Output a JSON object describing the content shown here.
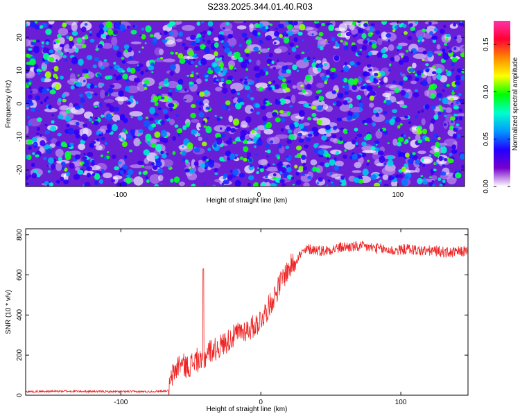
{
  "title": "S233.2025.344.01.40.R03",
  "colors": {
    "snr_line": "#ee2222",
    "axis": "#000000"
  },
  "chart_data": [
    {
      "type": "heatmap",
      "xlabel": "Height of straight line (km)",
      "ylabel": "Frequency (Hz)",
      "xlim": [
        -168,
        148
      ],
      "ylim": [
        -25,
        25
      ],
      "x_ticks": [
        -100,
        0,
        100
      ],
      "x_tick_labels": [
        "-100",
        "0",
        "100"
      ],
      "y_ticks": [
        -20,
        -10,
        0,
        10,
        20
      ],
      "y_tick_labels": [
        "-20",
        "-10",
        "0",
        "10",
        "20"
      ],
      "colorbar": {
        "label": "Normalized spectral amplitude",
        "range": [
          0,
          0.175
        ],
        "ticks": [
          0,
          0.05,
          0.1,
          0.15
        ],
        "tick_labels": [
          "0.00",
          "0.05",
          "0.10",
          "0.15"
        ],
        "colormap": [
          "#ffffff",
          "#7700cc",
          "#2200ff",
          "#0099ff",
          "#00ffcc",
          "#00ff00",
          "#ffff00",
          "#ff8800",
          "#ff0033",
          "#ff33aa"
        ]
      },
      "note": "dense speckle field of amplitudes mostly 0.02-0.08 with isolated peaks ~0.1"
    },
    {
      "type": "line",
      "xlabel": "Height of straight line (km)",
      "ylabel": "SNR (10 * v/v)",
      "xlim": [
        -168,
        148
      ],
      "ylim": [
        0,
        830
      ],
      "x_ticks": [
        -100,
        0,
        100
      ],
      "x_tick_labels": [
        "-100",
        "0",
        "100"
      ],
      "y_ticks": [
        0,
        200,
        400,
        600,
        800
      ],
      "y_tick_labels": [
        "0",
        "200",
        "400",
        "600",
        "800"
      ],
      "series": [
        {
          "color": "#ee2222",
          "x": [
            -168,
            -140,
            -110,
            -80,
            -66,
            -63,
            -58,
            -52,
            -46,
            -42,
            -38,
            -32,
            -26,
            -20,
            -14,
            -8,
            -2,
            4,
            10,
            16,
            22,
            28,
            34,
            45,
            60,
            75,
            85,
            95,
            105,
            115,
            125,
            135,
            148
          ],
          "y": [
            18,
            20,
            18,
            18,
            22,
            100,
            160,
            140,
            180,
            150,
            220,
            230,
            260,
            290,
            320,
            330,
            360,
            420,
            500,
            590,
            650,
            700,
            730,
            720,
            740,
            740,
            730,
            720,
            730,
            720,
            720,
            710,
            720
          ]
        }
      ]
    }
  ]
}
